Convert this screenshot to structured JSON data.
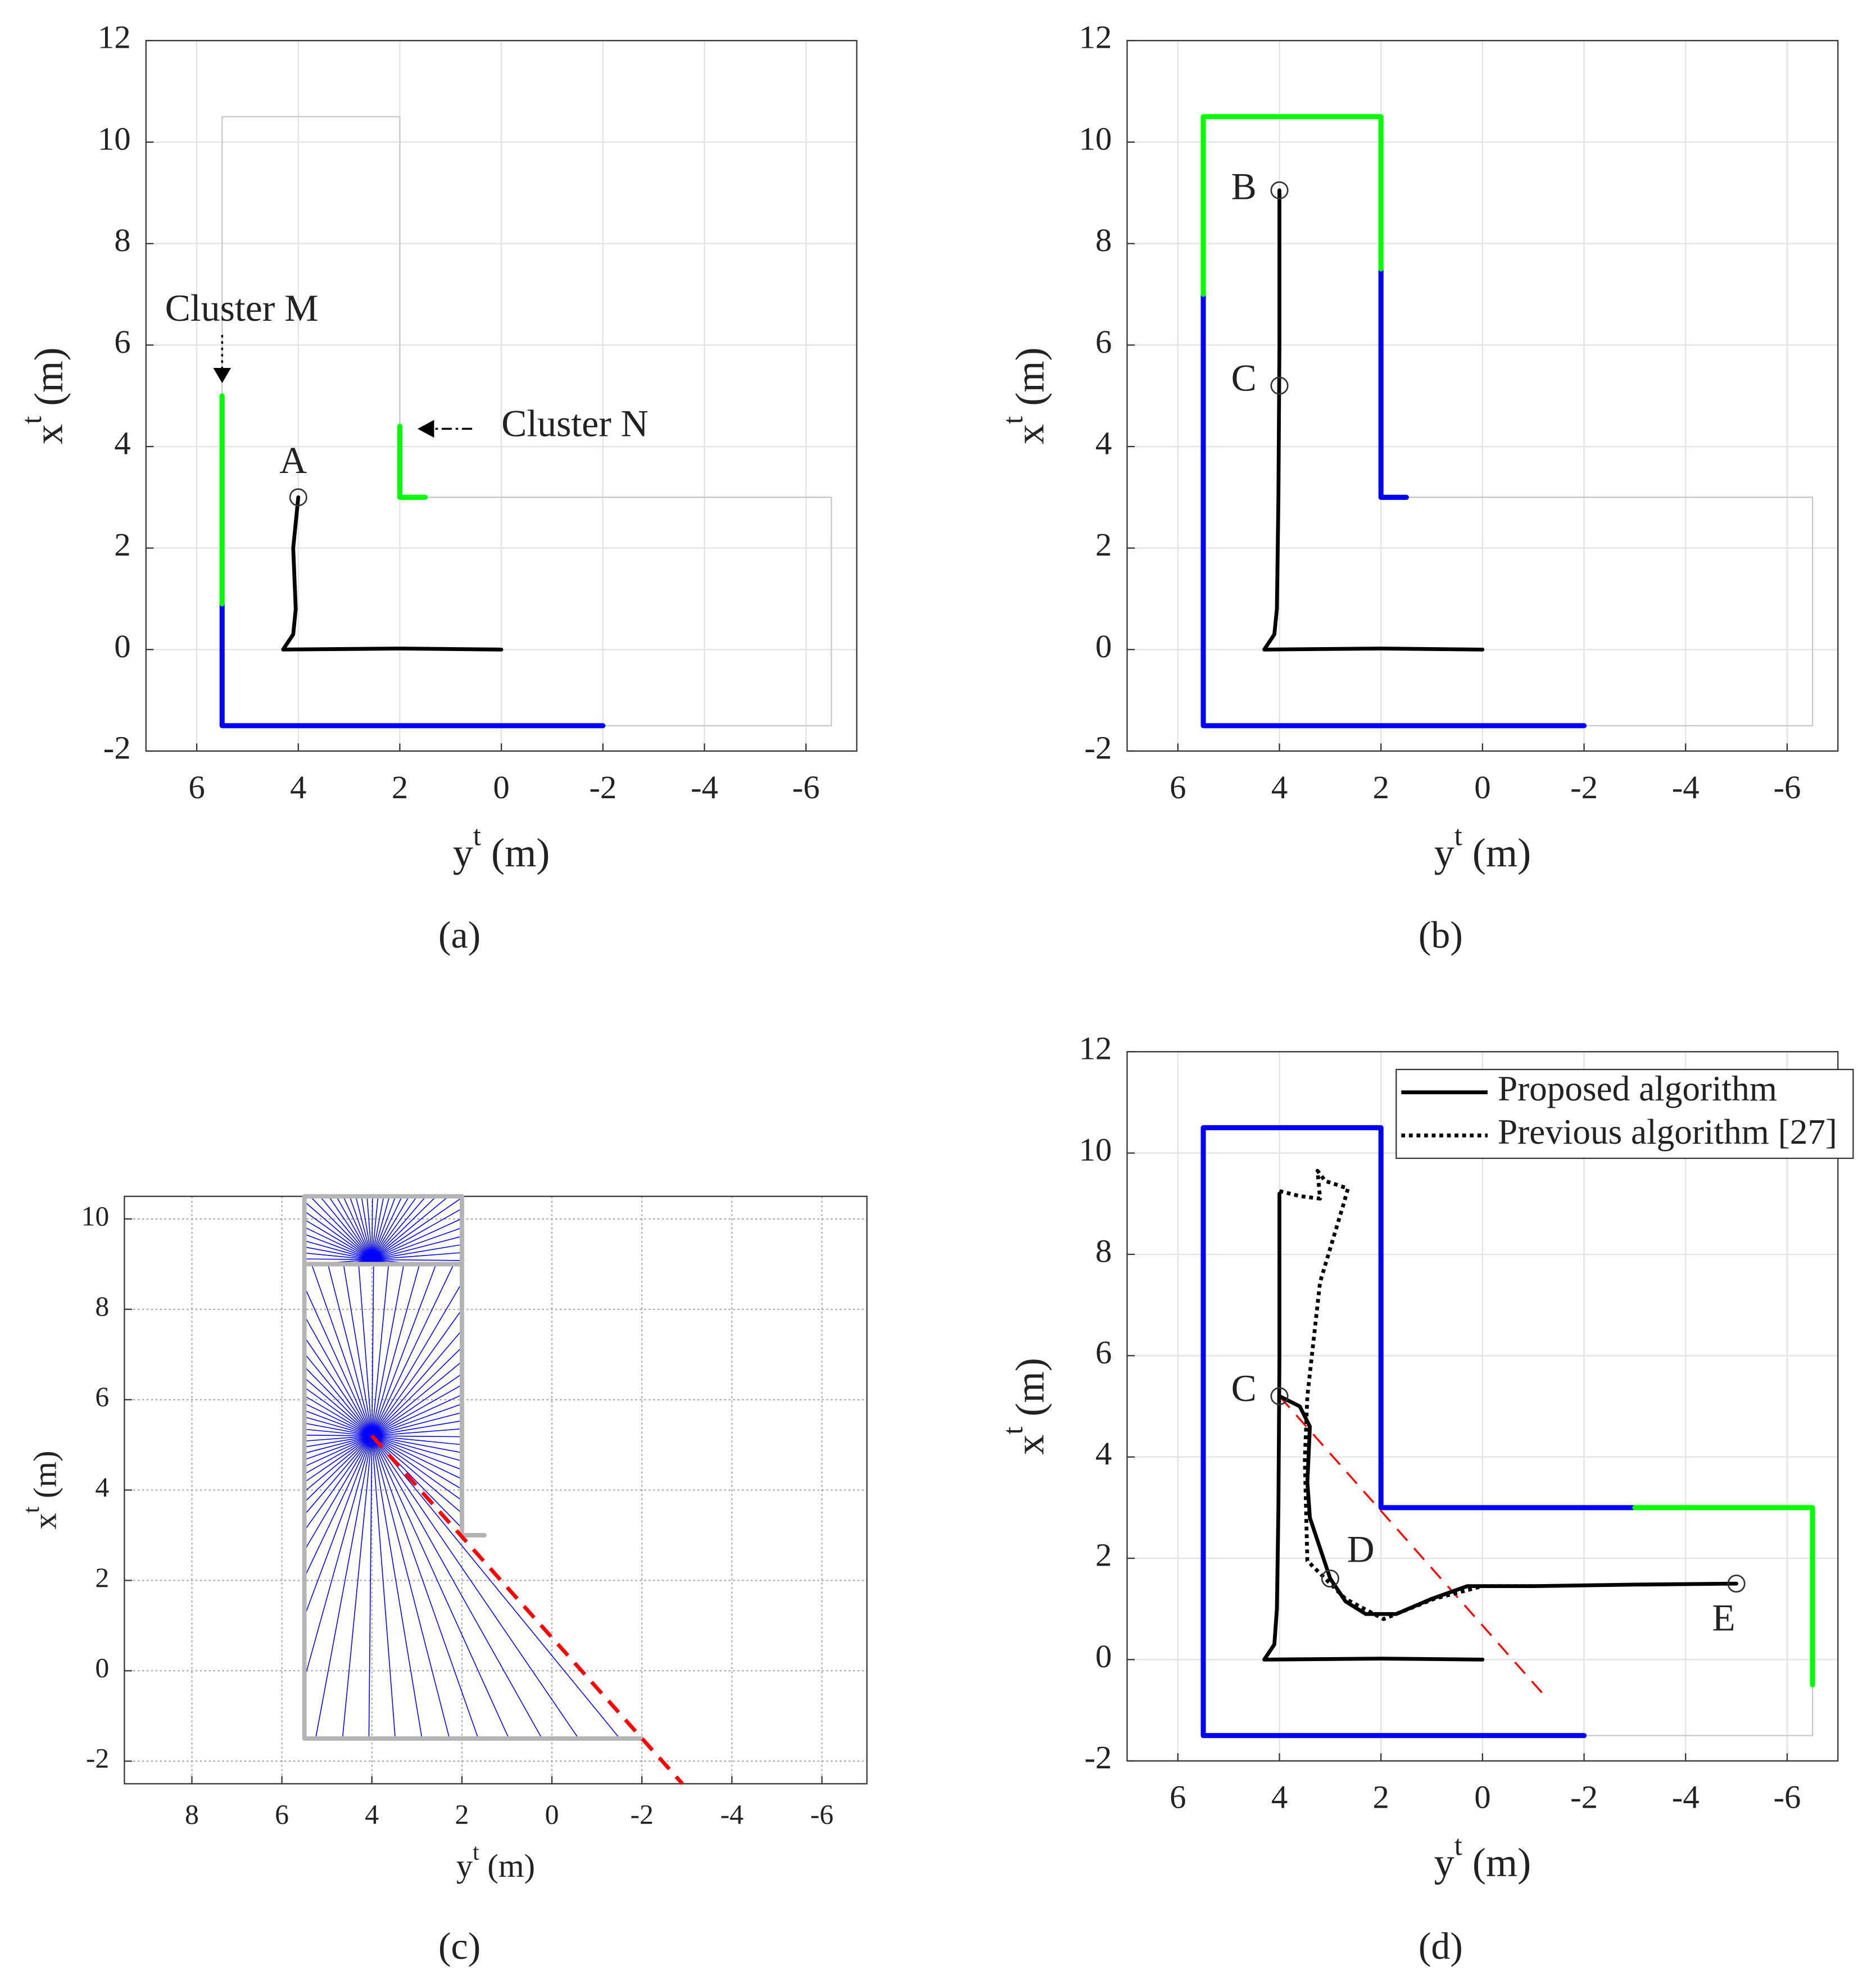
{
  "chart_data": [
    {
      "type": "line",
      "panel_label": "(a)",
      "xlabel": [
        "y",
        "t",
        " (m)"
      ],
      "ylabel": [
        "x",
        "t",
        " (m)"
      ],
      "xlim": [
        7,
        -7
      ],
      "ylim": [
        -2,
        12
      ],
      "xticks": [
        6,
        4,
        2,
        0,
        -2,
        -4,
        -6
      ],
      "yticks": [
        -2,
        0,
        2,
        4,
        6,
        8,
        10,
        12
      ],
      "grid": "solid",
      "series": [
        {
          "color": "#c8c8c8",
          "x": [
            5.5,
            5.5,
            2,
            2,
            -6.5,
            -6.5,
            5.5
          ],
          "y": [
            -1.5,
            10.5,
            10.5,
            3,
            3,
            -1.5,
            -1.5
          ]
        },
        {
          "color": "#0000ff",
          "x": [
            5.5,
            5.5,
            -2
          ],
          "y": [
            0.9,
            -1.5,
            -1.5
          ]
        },
        {
          "color": "#00ff00",
          "x": [
            5.5,
            5.5,
            null,
            2,
            2,
            1.5
          ],
          "y": [
            0.9,
            5,
            null,
            4.4,
            3,
            3
          ]
        },
        {
          "color": "#000000",
          "x": [
            0,
            2,
            4.3,
            4.1,
            4.05,
            4.1,
            4
          ],
          "y": [
            0,
            0.02,
            0,
            0.3,
            0.8,
            2,
            3
          ]
        }
      ],
      "points": [
        {
          "label": "A",
          "x": 4,
          "y": 3
        }
      ],
      "annotations": [
        {
          "text": "Cluster M"
        },
        {
          "text": "Cluster N"
        }
      ]
    },
    {
      "type": "line",
      "panel_label": "(b)",
      "xlabel": [
        "y",
        "t",
        " (m)"
      ],
      "ylabel": [
        "x",
        "t",
        " (m)"
      ],
      "xlim": [
        7,
        -7
      ],
      "ylim": [
        -2,
        12
      ],
      "xticks": [
        6,
        4,
        2,
        0,
        -2,
        -4,
        -6
      ],
      "yticks": [
        -2,
        0,
        2,
        4,
        6,
        8,
        10,
        12
      ],
      "grid": "solid",
      "series": [
        {
          "color": "#c8c8c8",
          "x": [
            5.5,
            5.5,
            2,
            2,
            -6.5,
            -6.5,
            5.5
          ],
          "y": [
            -1.5,
            10.5,
            10.5,
            3,
            3,
            -1.5,
            -1.5
          ]
        },
        {
          "color": "#0000ff",
          "x": [
            5.5,
            5.5,
            -2,
            null,
            2,
            2,
            1.5
          ],
          "y": [
            7,
            -1.5,
            -1.5,
            null,
            7.5,
            3,
            3
          ]
        },
        {
          "color": "#00ff00",
          "x": [
            5.5,
            5.5,
            2,
            2
          ],
          "y": [
            7,
            10.5,
            10.5,
            7.5
          ]
        },
        {
          "color": "#000000",
          "x": [
            0,
            2,
            4.3,
            4.1,
            4.05,
            4.02,
            4,
            4
          ],
          "y": [
            0,
            0.02,
            0,
            0.3,
            0.8,
            3,
            6,
            9.05
          ]
        }
      ],
      "points": [
        {
          "label": "B",
          "x": 4,
          "y": 9.05
        },
        {
          "label": "C",
          "x": 4,
          "y": 5.2
        }
      ]
    },
    {
      "type": "line",
      "panel_label": "(c)",
      "xlabel": [
        "y",
        "t",
        " (m)"
      ],
      "ylabel": [
        "x",
        "t",
        " (m)"
      ],
      "xlim": [
        9.5,
        -7
      ],
      "ylim": [
        -2.5,
        10.5
      ],
      "xticks": [
        8,
        6,
        4,
        2,
        0,
        -2,
        -4,
        -6
      ],
      "yticks": [
        -2,
        0,
        2,
        4,
        6,
        8,
        10
      ],
      "grid": "dotted",
      "series": [
        {
          "color": "#b4b4b4",
          "x": [
            1.5,
            2,
            2,
            5.5,
            5.5,
            -2,
            null,
            5.5,
            2
          ],
          "y": [
            3,
            3,
            10.5,
            10.5,
            -1.5,
            -1.5,
            null,
            9,
            9
          ]
        },
        {
          "color": "#ff0000",
          "dash": "dashed",
          "x": [
            4,
            -2.9
          ],
          "y": [
            5.2,
            -2.5
          ]
        }
      ],
      "ray_origins": [
        {
          "x": 4,
          "y": 5.2
        },
        {
          "x": 4,
          "y": 9.1
        }
      ],
      "ray_color": "#0000ff"
    },
    {
      "type": "line",
      "panel_label": "(d)",
      "xlabel": [
        "y",
        "t",
        " (m)"
      ],
      "ylabel": [
        "x",
        "t",
        " (m)"
      ],
      "xlim": [
        7,
        -7
      ],
      "ylim": [
        -2,
        12
      ],
      "xticks": [
        6,
        4,
        2,
        0,
        -2,
        -4,
        -6
      ],
      "yticks": [
        -2,
        0,
        2,
        4,
        6,
        8,
        10,
        12
      ],
      "grid": "solid",
      "legend": "upper right",
      "series": [
        {
          "color": "#c8c8c8",
          "x": [
            5.5,
            5.5,
            2,
            2,
            -6.5,
            -6.5,
            5.5
          ],
          "y": [
            -1.5,
            10.5,
            10.5,
            3,
            3,
            -1.5,
            -1.5
          ]
        },
        {
          "color": "#0000ff",
          "x": [
            5.5,
            5.5,
            2,
            2,
            -3,
            null,
            5.5,
            -2
          ],
          "y": [
            -1.5,
            10.5,
            10.5,
            3,
            3,
            null,
            -1.5,
            -1.5
          ]
        },
        {
          "color": "#00ff00",
          "x": [
            -3,
            -6.5,
            -6.5
          ],
          "y": [
            3,
            3,
            -0.5
          ]
        },
        {
          "color": "#ff0000",
          "dash": "dashed",
          "x": [
            4,
            -1.3
          ],
          "y": [
            5.2,
            -0.8
          ]
        },
        {
          "name": "Proposed algorithm",
          "color": "#000000",
          "x": [
            0,
            2,
            4.3,
            4.1,
            4.05,
            4.02,
            4,
            4,
            null,
            4,
            3.6,
            3.4,
            3.45,
            3.4,
            3,
            2.7,
            2.3,
            1.7,
            1,
            0.3,
            -1,
            -3,
            -5
          ],
          "y": [
            0,
            0.02,
            0,
            0.3,
            1,
            3,
            6,
            9.2,
            null,
            5.2,
            5,
            4.6,
            3.5,
            2.8,
            1.6,
            1.15,
            0.9,
            0.9,
            1.2,
            1.45,
            1.45,
            1.48,
            1.5
          ]
        },
        {
          "name": "Previous algorithm [27]",
          "color": "#000000",
          "dash": "dotted",
          "x": [
            4,
            3.6,
            3.2,
            3.25,
            3.1,
            2.65,
            2.75,
            3.2,
            3.45,
            3.5,
            3.45,
            2.7,
            1.95,
            0.95,
            0,
            -1
          ],
          "y": [
            9.25,
            9.15,
            9.1,
            9.65,
            9.45,
            9.3,
            8.95,
            7.45,
            5.2,
            3.95,
            1.95,
            1.2,
            0.8,
            1.2,
            1.45,
            1.45
          ]
        }
      ],
      "points": [
        {
          "label": "C",
          "x": 4,
          "y": 5.2
        },
        {
          "label": "D",
          "x": 3,
          "y": 1.6
        },
        {
          "label": "E",
          "x": -5,
          "y": 1.5
        }
      ]
    }
  ]
}
